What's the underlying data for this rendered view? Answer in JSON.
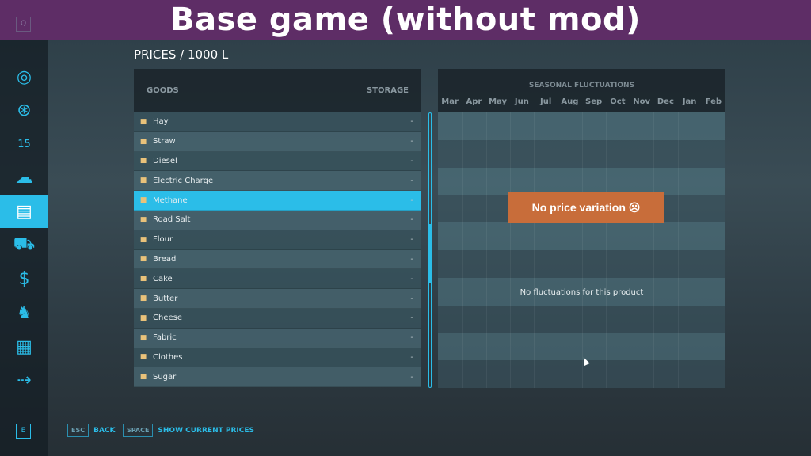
{
  "banner": {
    "title": "Base game (without mod)"
  },
  "sidebar": {
    "top_key": "Q",
    "bottom_key": "E",
    "items": [
      {
        "icon": "globe-map-icon",
        "glyph": "◎"
      },
      {
        "icon": "steering-wheel-icon",
        "glyph": "⊛"
      },
      {
        "icon": "calendar-icon",
        "glyph": "15"
      },
      {
        "icon": "weather-icon",
        "glyph": "☁"
      },
      {
        "icon": "prices-chart-icon",
        "glyph": "▤",
        "selected": true
      },
      {
        "icon": "tractor-icon",
        "glyph": "⛟"
      },
      {
        "icon": "money-icon",
        "glyph": "$"
      },
      {
        "icon": "cow-icon",
        "glyph": "♞"
      },
      {
        "icon": "contracts-icon",
        "glyph": "▦"
      },
      {
        "icon": "production-icon",
        "glyph": "⇢"
      }
    ]
  },
  "page_title": "PRICES / 1000 L",
  "goods": {
    "header_goods": "GOODS",
    "header_storage": "STORAGE",
    "items": [
      {
        "name": "Hay",
        "storage": "-"
      },
      {
        "name": "Straw",
        "storage": "-"
      },
      {
        "name": "Diesel",
        "storage": "-"
      },
      {
        "name": "Electric Charge",
        "storage": "-"
      },
      {
        "name": "Methane",
        "storage": "-",
        "selected": true
      },
      {
        "name": "Road Salt",
        "storage": "-"
      },
      {
        "name": "Flour",
        "storage": "-"
      },
      {
        "name": "Bread",
        "storage": "-"
      },
      {
        "name": "Cake",
        "storage": "-"
      },
      {
        "name": "Butter",
        "storage": "-"
      },
      {
        "name": "Cheese",
        "storage": "-"
      },
      {
        "name": "Fabric",
        "storage": "-"
      },
      {
        "name": "Clothes",
        "storage": "-"
      },
      {
        "name": "Sugar",
        "storage": "-"
      }
    ]
  },
  "seasonal": {
    "title": "SEASONAL FLUCTUATIONS",
    "months": [
      "Mar",
      "Apr",
      "May",
      "Jun",
      "Jul",
      "Aug",
      "Sep",
      "Oct",
      "Nov",
      "Dec",
      "Jan",
      "Feb"
    ],
    "badge": "No price variation ☹",
    "message": "No fluctuations for this product"
  },
  "footer": {
    "back_key": "ESC",
    "back_label": "BACK",
    "prices_key": "SPACE",
    "prices_label": "SHOW CURRENT PRICES"
  },
  "colors": {
    "accent": "#2bbde8",
    "banner": "#5e2d66",
    "badge": "#c86d3a"
  }
}
